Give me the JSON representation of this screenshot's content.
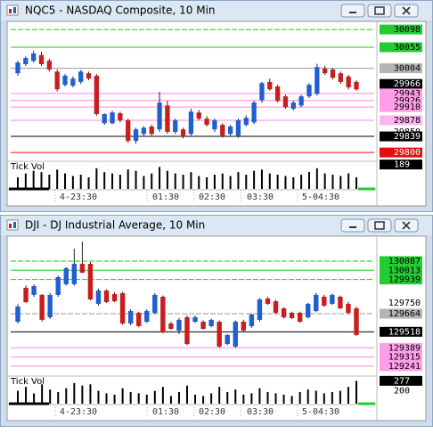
{
  "windows": [
    {
      "title": "NQC5 - NASDAQ Composite, 10 Min",
      "ylim": [
        29783,
        30109
      ],
      "up_color": "#1f5fd0",
      "down_color": "#c81e1e",
      "levels": [
        {
          "value": 30098,
          "box_color": "#22cc33",
          "text_color": "#000",
          "line": "dashed",
          "line_color": "#1ec81e"
        },
        {
          "value": 30055,
          "box_color": "#22cc33",
          "text_color": "#000",
          "line": "solid",
          "line_color": "#1ec81e"
        },
        {
          "value": 30004,
          "box_color": "#b4b4b4",
          "text_color": "#000",
          "line": "solid",
          "line_color": "#999999"
        },
        {
          "value": 29966,
          "box_color": "#000",
          "text_color": "#fff",
          "line": "none",
          "line_color": "#000"
        },
        {
          "value": 29943,
          "box_color": "#ff9ee8",
          "text_color": "#000",
          "line": "solid",
          "line_color": "#ff88dd"
        },
        {
          "value": 29926,
          "box_color": "#ff9ee8",
          "text_color": "#000",
          "line": "solid",
          "line_color": "#ff88dd"
        },
        {
          "value": 29910,
          "box_color": "#ff9ee8",
          "text_color": "#000",
          "line": "solid",
          "line_color": "#ff88dd"
        },
        {
          "value": 29878,
          "box_color": "#ffb4f0",
          "text_color": "#000",
          "line": "solid",
          "line_color": "#ff88dd"
        },
        {
          "value": 29850,
          "box_color": "#ffffff",
          "text_color": "#000",
          "line": "none",
          "line_color": "#000"
        },
        {
          "value": 29839,
          "box_color": "#000",
          "text_color": "#fff",
          "line": "solid",
          "line_color": "#000"
        },
        {
          "value": 29800,
          "box_color": "#e01010",
          "text_color": "#fff",
          "line": "solid",
          "line_color": "#e01010"
        }
      ],
      "candles": [
        [
          29992,
          30022,
          29986,
          30018
        ],
        [
          30014,
          30033,
          30010,
          30029
        ],
        [
          30022,
          30046,
          30018,
          30040
        ],
        [
          30036,
          30044,
          30010,
          30014
        ],
        [
          30022,
          30027,
          29996,
          30001
        ],
        [
          29996,
          30001,
          29948,
          29953
        ],
        [
          29964,
          29990,
          29960,
          29986
        ],
        [
          29962,
          29984,
          29958,
          29979
        ],
        [
          29971,
          30000,
          29966,
          29996
        ],
        [
          29992,
          29996,
          29975,
          29979
        ],
        [
          29986,
          29990,
          29889,
          29893
        ],
        [
          29871,
          29895,
          29867,
          29893
        ],
        [
          29871,
          29901,
          29868,
          29897
        ],
        [
          29895,
          29899,
          29873,
          29878
        ],
        [
          29878,
          29882,
          29824,
          29828
        ],
        [
          29828,
          29860,
          29821,
          29856
        ],
        [
          29845,
          29864,
          29841,
          29860
        ],
        [
          29863,
          29867,
          29841,
          29845
        ],
        [
          29856,
          29947,
          29850,
          29921
        ],
        [
          29914,
          29925,
          29845,
          29850
        ],
        [
          29850,
          29882,
          29845,
          29878
        ],
        [
          29856,
          29860,
          29834,
          29841
        ],
        [
          29845,
          29906,
          29841,
          29899
        ],
        [
          29897,
          29903,
          29878,
          29882
        ],
        [
          29882,
          29888,
          29863,
          29867
        ],
        [
          29856,
          29882,
          29850,
          29878
        ],
        [
          29867,
          29871,
          29836,
          29841
        ],
        [
          29845,
          29867,
          29841,
          29863
        ],
        [
          29841,
          29882,
          29836,
          29878
        ],
        [
          29867,
          29890,
          29863,
          29884
        ],
        [
          29873,
          29925,
          29869,
          29921
        ],
        [
          29927,
          29971,
          29921,
          29968
        ],
        [
          29971,
          29979,
          29950,
          29953
        ],
        [
          29960,
          29964,
          29921,
          29925
        ],
        [
          29936,
          29940,
          29906,
          29910
        ],
        [
          29906,
          29925,
          29902,
          29921
        ],
        [
          29914,
          29940,
          29910,
          29936
        ],
        [
          29936,
          29968,
          29932,
          29964
        ],
        [
          29942,
          30015,
          29938,
          30007
        ],
        [
          30003,
          30010,
          29988,
          29992
        ],
        [
          30001,
          30005,
          29977,
          29981
        ],
        [
          29992,
          29996,
          29966,
          29971
        ],
        [
          29984,
          29988,
          29953,
          29958
        ],
        [
          29971,
          29975,
          29950,
          29953
        ]
      ],
      "volume": {
        "label": "Tick Vol",
        "ylim": [
          0,
          200
        ],
        "values": [
          90,
          120,
          140,
          130,
          110,
          150,
          120,
          100,
          110,
          90,
          160,
          130,
          120,
          110,
          150,
          140,
          100,
          120,
          170,
          140,
          120,
          110,
          130,
          100,
          90,
          110,
          120,
          100,
          130,
          110,
          140,
          150,
          120,
          110,
          100,
          90,
          110,
          130,
          160,
          120,
          110,
          100,
          120,
          90
        ],
        "markers": [
          {
            "value": 189,
            "box_color": "#000",
            "text_color": "#fff"
          }
        ]
      },
      "time_labels": [
        "4-23:30",
        "01:30",
        "02:30",
        "03:30",
        "5-04:30"
      ]
    },
    {
      "title": "DJI - DJ Industrial Average, 10 Min",
      "ylim": [
        129176,
        130259
      ],
      "up_color": "#1f5fd0",
      "down_color": "#c81e1e",
      "levels": [
        {
          "value": 130087,
          "box_color": "#22cc33",
          "text_color": "#000",
          "line": "dashed",
          "line_color": "#1ec81e"
        },
        {
          "value": 130013,
          "box_color": "#22cc33",
          "text_color": "#000",
          "line": "solid",
          "line_color": "#1ec81e"
        },
        {
          "value": 129939,
          "box_color": "#22cc33",
          "text_color": "#000",
          "line": "dashed",
          "line_color": "#1ec81e"
        },
        {
          "value": 129750,
          "box_color": null,
          "text_color": "#000",
          "line": "none",
          "line_color": "#000"
        },
        {
          "value": 129664,
          "box_color": "#b4b4b4",
          "text_color": "#000",
          "line": "dashed",
          "line_color": "#999999"
        },
        {
          "value": 129518,
          "box_color": "#000",
          "text_color": "#fff",
          "line": "solid",
          "line_color": "#000"
        },
        {
          "value": 129389,
          "box_color": "#ff9ee8",
          "text_color": "#000",
          "line": "solid",
          "line_color": "#ff88dd"
        },
        {
          "value": 129315,
          "box_color": "#ff9ee8",
          "text_color": "#000",
          "line": "solid",
          "line_color": "#ff88dd"
        },
        {
          "value": 129241,
          "box_color": "#ff9ee8",
          "text_color": "#000",
          "line": "solid",
          "line_color": "#ff88dd"
        }
      ],
      "candles": [
        [
          129599,
          129740,
          129585,
          129721
        ],
        [
          129872,
          129890,
          129750,
          129757
        ],
        [
          129815,
          129900,
          129800,
          129886
        ],
        [
          129815,
          129822,
          129600,
          129614
        ],
        [
          129635,
          129830,
          129620,
          129815
        ],
        [
          129815,
          129970,
          129800,
          129958
        ],
        [
          129901,
          130040,
          129890,
          130030
        ],
        [
          129901,
          130187,
          129890,
          130065
        ],
        [
          130065,
          130245,
          129990,
          129994
        ],
        [
          130065,
          130080,
          129770,
          129779
        ],
        [
          129743,
          129865,
          129730,
          129850
        ],
        [
          129850,
          129860,
          129750,
          129757
        ],
        [
          129822,
          129835,
          129755,
          129764
        ],
        [
          129829,
          129840,
          129575,
          129585
        ],
        [
          129585,
          129700,
          129570,
          129685
        ],
        [
          129671,
          129680,
          129555,
          129564
        ],
        [
          129599,
          129700,
          129590,
          129685
        ],
        [
          129671,
          129830,
          129660,
          129815
        ],
        [
          129800,
          129810,
          129505,
          129513
        ],
        [
          129585,
          129600,
          129535,
          129542
        ],
        [
          129528,
          129630,
          129500,
          129614
        ],
        [
          129635,
          129650,
          129410,
          129420
        ],
        [
          129599,
          129650,
          129590,
          129635
        ],
        [
          129599,
          129610,
          129535,
          129542
        ],
        [
          129564,
          129625,
          129555,
          129614
        ],
        [
          129599,
          129610,
          129390,
          129399
        ],
        [
          129420,
          129500,
          129410,
          129492
        ],
        [
          129399,
          129610,
          129390,
          129599
        ],
        [
          129599,
          129615,
          129520,
          129528
        ],
        [
          129564,
          129665,
          129550,
          129657
        ],
        [
          129614,
          129790,
          129600,
          129779
        ],
        [
          129786,
          129800,
          129735,
          129743
        ],
        [
          129764,
          129775,
          129660,
          129671
        ],
        [
          129707,
          129715,
          129625,
          129635
        ],
        [
          129671,
          129680,
          129620,
          129628
        ],
        [
          129671,
          129680,
          129590,
          129599
        ],
        [
          129635,
          129750,
          129625,
          129743
        ],
        [
          129685,
          129830,
          129675,
          129815
        ],
        [
          129800,
          129815,
          129720,
          129728
        ],
        [
          129743,
          129825,
          129735,
          129815
        ],
        [
          129800,
          129810,
          129700,
          129707
        ],
        [
          129743,
          129760,
          129660,
          129671
        ],
        [
          129707,
          129720,
          129485,
          129492
        ]
      ],
      "volume": {
        "label": "Tick Vol",
        "ylim": [
          100,
          300
        ],
        "values": [
          200,
          230,
          180,
          250,
          210,
          190,
          220,
          260,
          240,
          250,
          200,
          180,
          170,
          220,
          190,
          180,
          170,
          200,
          230,
          160,
          190,
          240,
          170,
          160,
          180,
          230,
          190,
          210,
          170,
          180,
          220,
          190,
          180,
          170,
          160,
          190,
          210,
          200,
          180,
          190,
          200,
          230,
          277
        ],
        "markers": [
          {
            "value": 277,
            "box_color": "#000",
            "text_color": "#fff"
          },
          {
            "value": 200,
            "box_color": null,
            "text_color": "#000"
          }
        ]
      },
      "time_labels": [
        "4-23:30",
        "01:30",
        "02:30",
        "03:30",
        "5-04:30"
      ]
    }
  ]
}
